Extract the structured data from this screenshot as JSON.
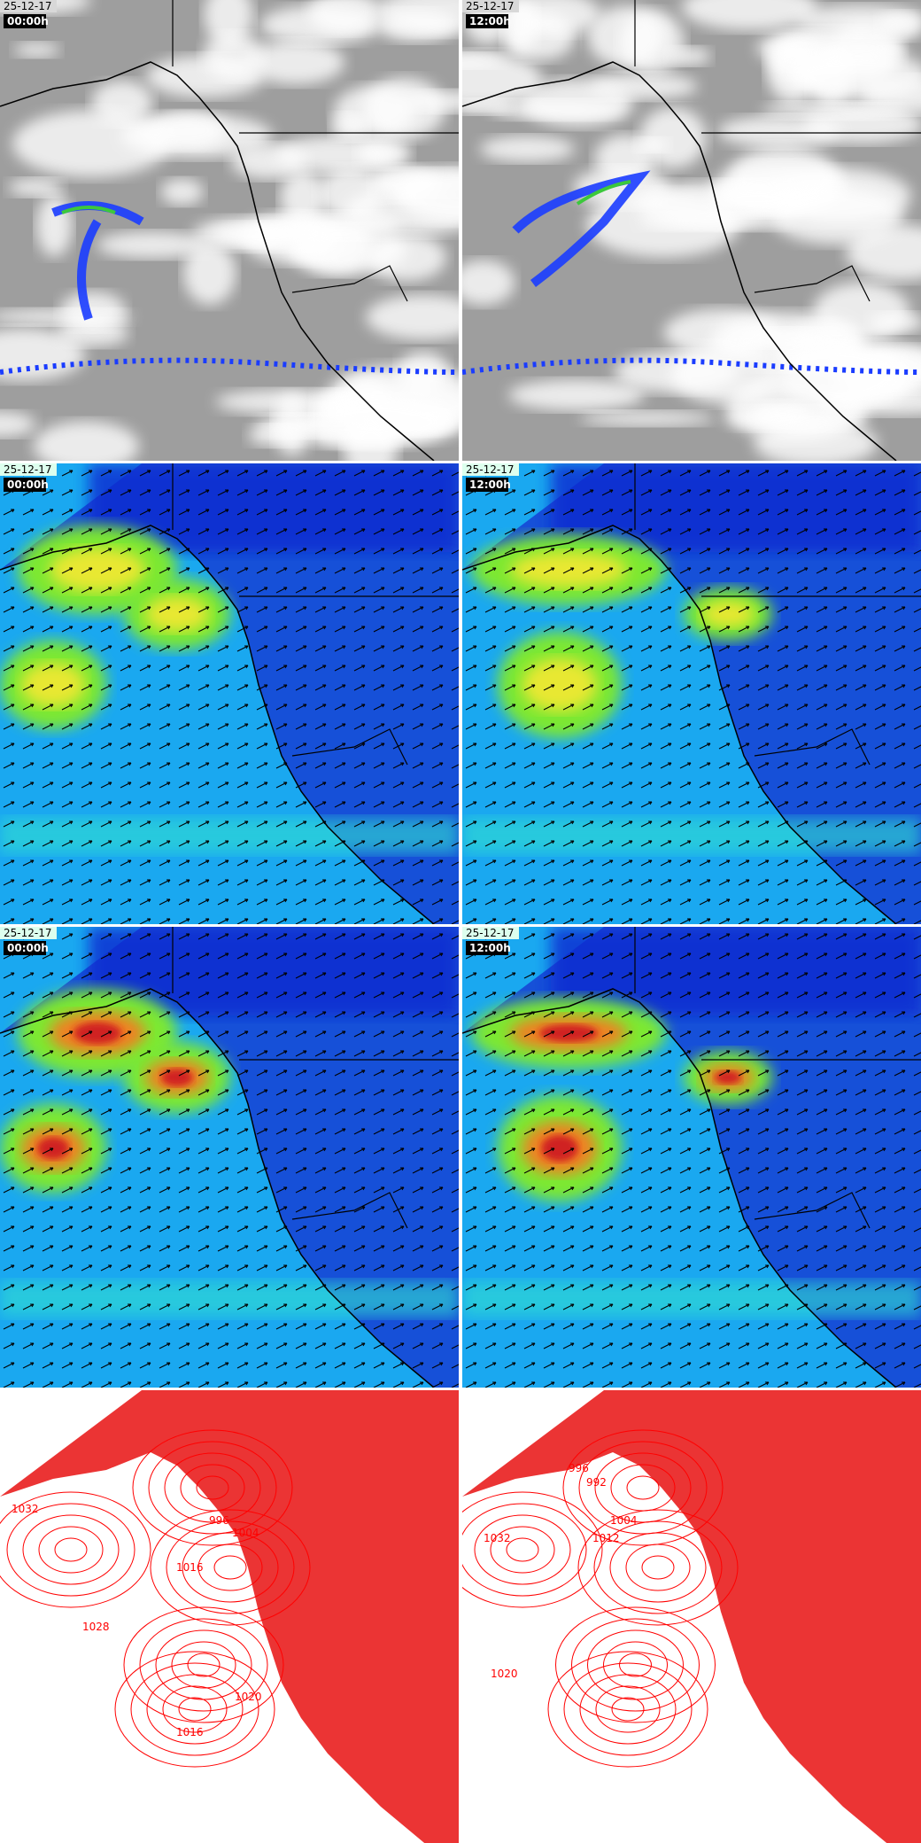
{
  "panels": [
    {
      "date": "25-12-17",
      "time": "00:00h"
    },
    {
      "date": "25-12-17",
      "time": "12:00h"
    },
    {
      "date": "25-12-17",
      "time": "00:00h"
    },
    {
      "date": "25-12-17",
      "time": "12:00h"
    },
    {
      "date": "25-12-17",
      "time": "00:00h"
    },
    {
      "date": "25-12-17",
      "time": "12:00h"
    }
  ],
  "pressure_panels": [
    {
      "isobar_labels": [
        1032,
        996,
        1004,
        1016,
        1028,
        1020,
        1016
      ]
    },
    {
      "isobar_labels": [
        1032,
        992,
        996,
        1004,
        1012,
        1020
      ]
    }
  ]
}
